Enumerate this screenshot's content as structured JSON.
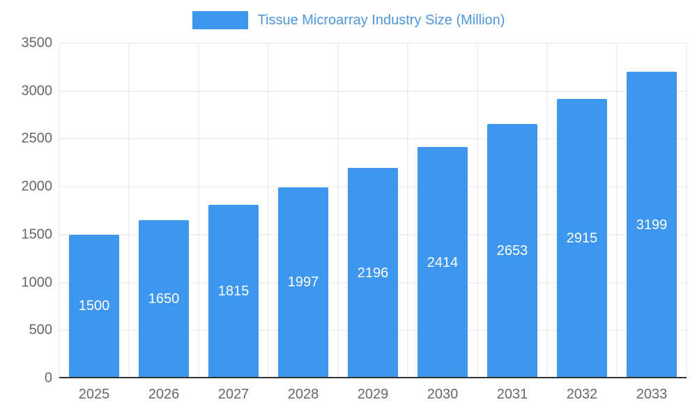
{
  "chart_data": {
    "type": "bar",
    "title": "Tissue Microarray Industry Size (Million)",
    "categories": [
      "2025",
      "2026",
      "2027",
      "2028",
      "2029",
      "2030",
      "2031",
      "2032",
      "2033"
    ],
    "values": [
      1500,
      1650,
      1815,
      1997,
      2196,
      2414,
      2653,
      2915,
      3199
    ],
    "xlabel": "",
    "ylabel": "",
    "ylim": [
      0,
      3500
    ],
    "ytick_step": 500,
    "grid": true,
    "legend_position": "top",
    "value_labels": "inside-center",
    "colors": {
      "bar": "#3D97EE",
      "title_text": "#4D96DC",
      "axis_text": "#666666",
      "gridline": "#E3E3E3",
      "baseline": "#333333",
      "value_label": "#FFFFFF",
      "background": "#FFFFFF"
    }
  }
}
